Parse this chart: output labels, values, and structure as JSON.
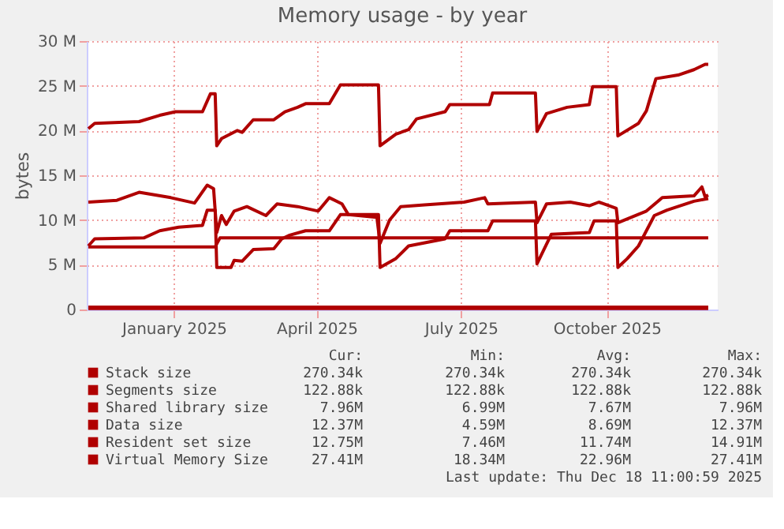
{
  "chart_data": {
    "type": "line",
    "title": "Memory usage - by year",
    "ylabel": "bytes",
    "xlim": [
      "2024-11-21",
      "2025-12-24"
    ],
    "xticks": [
      {
        "value": "2025-01-15",
        "label": "January 2025"
      },
      {
        "value": "2025-04-15",
        "label": "April 2025"
      },
      {
        "value": "2025-07-15",
        "label": "July 2025"
      },
      {
        "value": "2025-10-15",
        "label": "October 2025"
      }
    ],
    "ylim": [
      0,
      30
    ],
    "yticks": [
      0,
      {
        "value": 5,
        "label": "5 M"
      },
      {
        "value": 10,
        "label": "10 M"
      },
      {
        "value": 15,
        "label": "15 M"
      },
      {
        "value": 20,
        "label": "20 M"
      },
      {
        "value": 25,
        "label": "25 M"
      },
      {
        "value": 30,
        "label": "30 M"
      }
    ],
    "grid": true,
    "legend": "bottom",
    "line_style": "solid",
    "series": [
      {
        "name": "Stack size",
        "color": "#b00000",
        "x": [
          "2024-11-22",
          "2025-12-18"
        ],
        "values": [
          0.27,
          0.27
        ]
      },
      {
        "name": "Segments size",
        "color": "#b00000",
        "x": [
          "2024-11-22",
          "2025-12-18"
        ],
        "values": [
          0.12,
          0.12
        ]
      },
      {
        "name": "Shared library size",
        "color": "#b00000",
        "x": [
          "2024-11-22",
          "2025-02-10",
          "2025-02-13",
          "2025-12-18"
        ],
        "values": [
          7.0,
          7.0,
          8.0,
          8.0
        ]
      },
      {
        "name": "Data size",
        "color": "#b00000",
        "x": [
          "2024-11-22",
          "2024-11-26",
          "2024-12-27",
          "2025-01-06",
          "2025-01-18",
          "2025-02-02",
          "2025-02-05",
          "2025-02-10",
          "2025-02-11",
          "2025-02-20",
          "2025-02-22",
          "2025-02-27",
          "2025-03-06",
          "2025-03-19",
          "2025-03-24",
          "2025-03-29",
          "2025-04-08",
          "2025-04-23",
          "2025-04-30",
          "2025-05-24",
          "2025-05-25",
          "2025-06-04",
          "2025-06-12",
          "2025-07-05",
          "2025-07-08",
          "2025-08-01",
          "2025-08-04",
          "2025-08-31",
          "2025-09-01",
          "2025-09-10",
          "2025-10-04",
          "2025-10-07",
          "2025-10-21",
          "2025-10-22",
          "2025-10-28",
          "2025-11-04",
          "2025-11-14",
          "2025-11-22",
          "2025-12-09",
          "2025-12-18"
        ],
        "values": [
          7.1,
          7.9,
          8.0,
          8.8,
          9.2,
          9.4,
          11.1,
          11.1,
          4.7,
          4.7,
          5.5,
          5.4,
          6.7,
          6.8,
          7.9,
          8.3,
          8.8,
          8.8,
          10.6,
          10.6,
          4.7,
          5.7,
          7.1,
          7.9,
          8.8,
          8.8,
          9.9,
          9.9,
          5.1,
          8.4,
          8.6,
          9.9,
          9.9,
          4.7,
          5.7,
          7.1,
          10.5,
          11.1,
          12.1,
          12.4
        ]
      },
      {
        "name": "Resident set size",
        "color": "#b00000",
        "x": [
          "2024-11-22",
          "2024-12-10",
          "2024-12-24",
          "2025-01-13",
          "2025-01-28",
          "2025-02-05",
          "2025-02-09",
          "2025-02-11",
          "2025-02-14",
          "2025-02-17",
          "2025-02-22",
          "2025-03-02",
          "2025-03-14",
          "2025-03-21",
          "2025-04-03",
          "2025-04-16",
          "2025-04-23",
          "2025-05-01",
          "2025-05-05",
          "2025-05-23",
          "2025-05-25",
          "2025-05-31",
          "2025-06-07",
          "2025-06-22",
          "2025-07-17",
          "2025-07-30",
          "2025-08-01",
          "2025-08-31",
          "2025-09-01",
          "2025-09-07",
          "2025-09-22",
          "2025-10-04",
          "2025-10-10",
          "2025-10-21",
          "2025-10-22",
          "2025-11-09",
          "2025-11-19",
          "2025-12-09",
          "2025-12-14",
          "2025-12-16",
          "2025-12-18"
        ],
        "values": [
          12.0,
          12.2,
          13.1,
          12.5,
          11.9,
          13.9,
          13.5,
          8.6,
          10.5,
          9.5,
          11.0,
          11.5,
          10.5,
          11.8,
          11.5,
          11.0,
          12.5,
          11.8,
          10.6,
          10.3,
          7.4,
          10.0,
          11.5,
          11.7,
          12.0,
          12.5,
          11.8,
          12.0,
          9.7,
          11.8,
          12.0,
          11.6,
          12.0,
          11.3,
          9.7,
          11.0,
          12.5,
          12.7,
          13.7,
          12.6,
          12.8
        ]
      },
      {
        "name": "Virtual Memory Size",
        "color": "#b00000",
        "x": [
          "2024-11-22",
          "2024-11-26",
          "2024-12-24",
          "2025-01-06",
          "2025-01-16",
          "2025-02-02",
          "2025-02-07",
          "2025-02-10",
          "2025-02-11",
          "2025-02-14",
          "2025-02-24",
          "2025-02-27",
          "2025-03-06",
          "2025-03-19",
          "2025-03-26",
          "2025-04-03",
          "2025-04-08",
          "2025-04-23",
          "2025-04-30",
          "2025-05-24",
          "2025-05-25",
          "2025-06-04",
          "2025-06-12",
          "2025-06-17",
          "2025-07-05",
          "2025-07-08",
          "2025-08-02",
          "2025-08-04",
          "2025-08-31",
          "2025-09-01",
          "2025-09-07",
          "2025-09-20",
          "2025-10-04",
          "2025-10-06",
          "2025-10-21",
          "2025-10-22",
          "2025-11-04",
          "2025-11-09",
          "2025-11-15",
          "2025-11-29",
          "2025-12-09",
          "2025-12-16",
          "2025-12-18"
        ],
        "values": [
          20.2,
          20.8,
          21.0,
          21.7,
          22.1,
          22.1,
          24.1,
          24.1,
          18.3,
          19.1,
          20.0,
          19.8,
          21.2,
          21.2,
          22.1,
          22.6,
          23.0,
          23.0,
          25.1,
          25.1,
          18.3,
          19.6,
          20.1,
          21.3,
          22.1,
          22.9,
          22.9,
          24.2,
          24.2,
          19.9,
          21.9,
          22.6,
          22.9,
          24.9,
          24.9,
          19.4,
          20.8,
          22.2,
          25.8,
          26.2,
          26.8,
          27.4,
          27.4
        ]
      }
    ],
    "annotations": [
      "Cur:",
      "Min:",
      "Avg:",
      "Max:",
      "270.34k",
      "270.34k",
      "270.34k",
      "270.34k",
      "122.88k",
      "122.88k",
      "122.88k",
      "122.88k",
      "7.96M",
      "6.99M",
      "7.67M",
      "7.96M",
      "12.37M",
      "4.59M",
      "8.69M",
      "12.37M",
      "12.75M",
      "7.46M",
      "11.74M",
      "14.91M",
      "27.41M",
      "18.34M",
      "22.96M",
      "27.41M",
      "Last update: Thu Dec 18 11:00:59 2025"
    ]
  }
}
